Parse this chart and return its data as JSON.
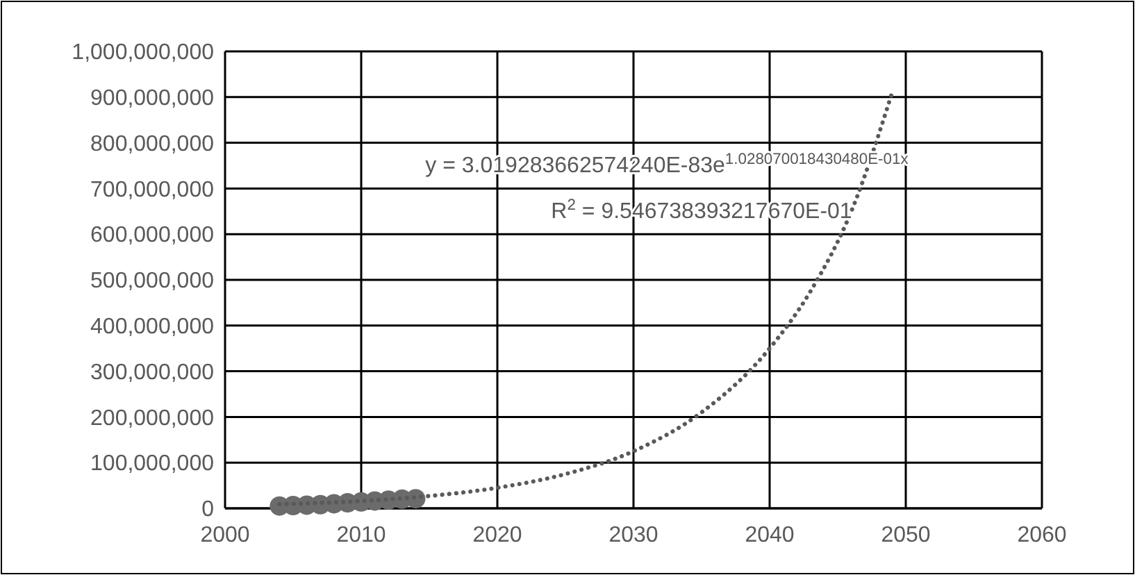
{
  "chart_data": {
    "type": "scatter",
    "xlim": [
      2000,
      2060
    ],
    "xticks": [
      2000,
      2010,
      2020,
      2030,
      2040,
      2050,
      2060
    ],
    "ylim": [
      0,
      1000000000
    ],
    "yticks": [
      {
        "value": 0,
        "label": "0"
      },
      {
        "value": 100000000,
        "label": "100,000,000"
      },
      {
        "value": 200000000,
        "label": "200,000,000"
      },
      {
        "value": 300000000,
        "label": "300,000,000"
      },
      {
        "value": 400000000,
        "label": "400,000,000"
      },
      {
        "value": 500000000,
        "label": "500,000,000"
      },
      {
        "value": 600000000,
        "label": "600,000,000"
      },
      {
        "value": 700000000,
        "label": "700,000,000"
      },
      {
        "value": 800000000,
        "label": "800,000,000"
      },
      {
        "value": 900000000,
        "label": "900,000,000"
      },
      {
        "value": 1000000000,
        "label": "1,000,000,000"
      }
    ],
    "grid": true,
    "series": [
      {
        "marker": "circle",
        "color": "#6b6b6b",
        "x": [
          2004,
          2005,
          2006,
          2007,
          2008,
          2009,
          2010,
          2011,
          2012,
          2013,
          2014
        ],
        "values": [
          5000000,
          6000000,
          7000000,
          8000000,
          10000000,
          12000000,
          14000000,
          16000000,
          18000000,
          20000000,
          21000000
        ]
      },
      {
        "type": "line",
        "marker": "none",
        "line_style": "dotted",
        "color": "#595959",
        "x": [
          2004,
          2010,
          2015,
          2020,
          2025,
          2030,
          2035,
          2040,
          2043,
          2046,
          2049
        ],
        "values": [
          9000000,
          16000000,
          27000000,
          45000000,
          75000000,
          125000000,
          210000000,
          350000000,
          475000000,
          650000000,
          910000000
        ]
      }
    ],
    "annotations": [
      "y = 3.019283662574240E-83e$^{1.028070018430480E-01x}$",
      "R$^{2}$ = 9.546738393217670E-01"
    ]
  }
}
